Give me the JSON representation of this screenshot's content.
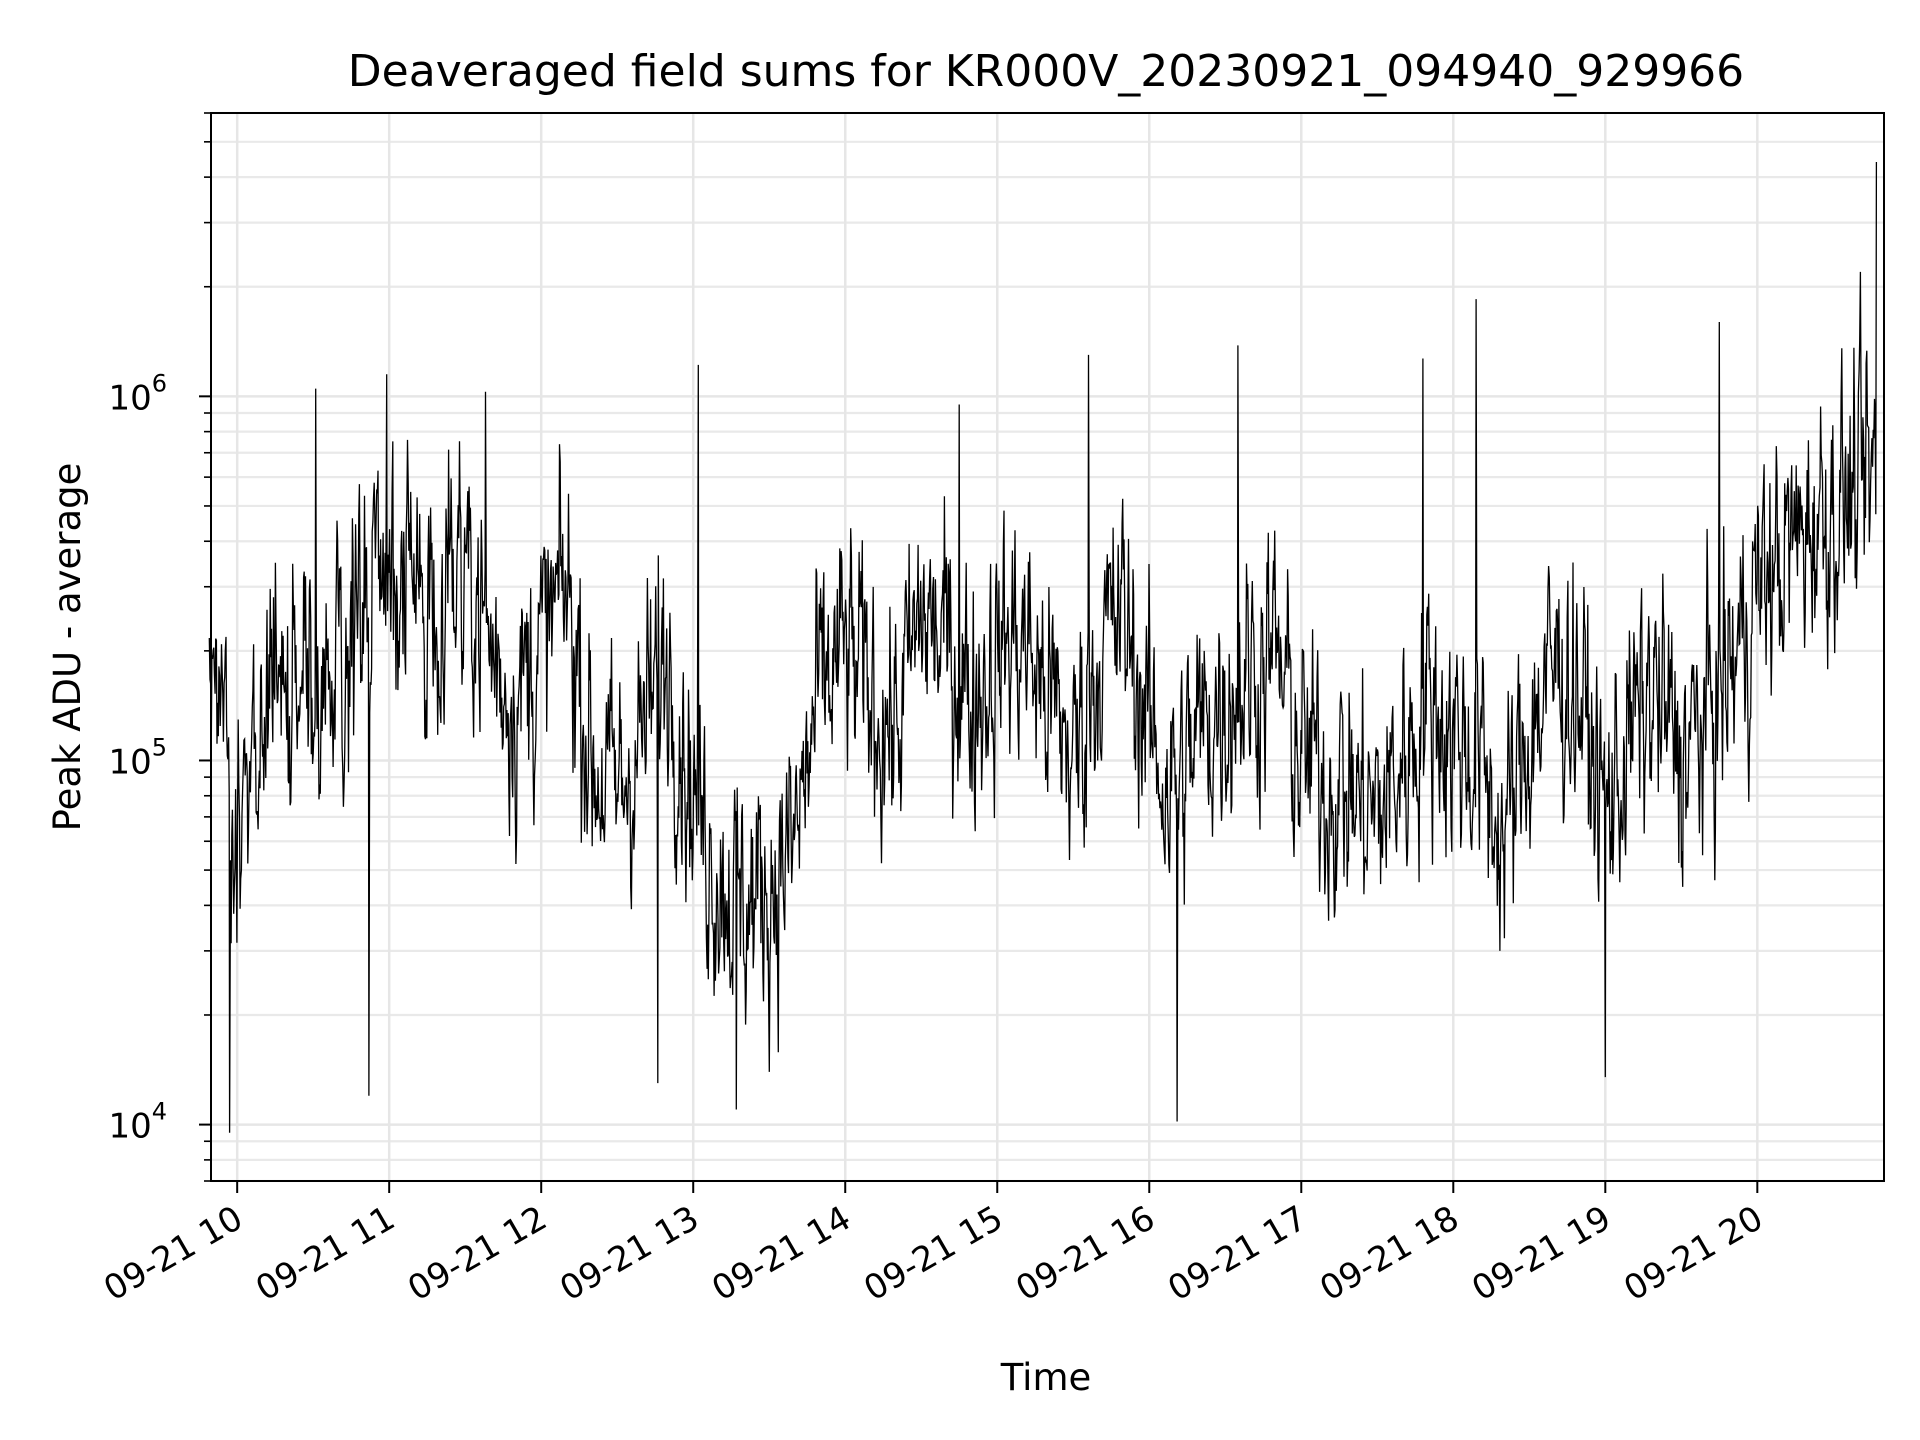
{
  "chart_data": {
    "type": "line",
    "title": "Deaveraged field sums for KR000V_20230921_094940_929966",
    "xlabel": "Time",
    "ylabel": "Peak ADU - average",
    "yscale": "log",
    "ylim": [
      7000,
      6000000
    ],
    "xlim": [
      "2023-09-21 09:49:40",
      "2023-09-21 20:50:00"
    ],
    "x_ticks": [
      {
        "value": "2023-09-21 10:00",
        "label": "09-21 10"
      },
      {
        "value": "2023-09-21 11:00",
        "label": "09-21 11"
      },
      {
        "value": "2023-09-21 12:00",
        "label": "09-21 12"
      },
      {
        "value": "2023-09-21 13:00",
        "label": "09-21 13"
      },
      {
        "value": "2023-09-21 14:00",
        "label": "09-21 14"
      },
      {
        "value": "2023-09-21 15:00",
        "label": "09-21 15"
      },
      {
        "value": "2023-09-21 16:00",
        "label": "09-21 16"
      },
      {
        "value": "2023-09-21 17:00",
        "label": "09-21 17"
      },
      {
        "value": "2023-09-21 18:00",
        "label": "09-21 18"
      },
      {
        "value": "2023-09-21 19:00",
        "label": "09-21 19"
      },
      {
        "value": "2023-09-21 20:00",
        "label": "09-21 20"
      }
    ],
    "y_ticks": [
      {
        "value": 10000,
        "base": "10",
        "exp": "4"
      },
      {
        "value": 100000,
        "base": "10",
        "exp": "5"
      },
      {
        "value": 1000000,
        "base": "10",
        "exp": "6"
      }
    ],
    "grid": true,
    "series_color": "#000000",
    "series": [
      {
        "x": [
          "2023-09-21 09:50",
          "2023-09-21 09:55",
          "2023-09-21 10:00",
          "2023-09-21 10:10",
          "2023-09-21 10:15",
          "2023-09-21 10:25",
          "2023-09-21 10:30",
          "2023-09-21 10:40",
          "2023-09-21 10:50",
          "2023-09-21 10:55",
          "2023-09-21 11:00",
          "2023-09-21 11:10",
          "2023-09-21 11:20",
          "2023-09-21 11:30",
          "2023-09-21 11:40",
          "2023-09-21 11:50",
          "2023-09-21 12:00",
          "2023-09-21 12:10",
          "2023-09-21 12:20",
          "2023-09-21 12:30",
          "2023-09-21 12:40",
          "2023-09-21 12:50",
          "2023-09-21 13:00",
          "2023-09-21 13:10",
          "2023-09-21 13:20",
          "2023-09-21 13:30",
          "2023-09-21 13:40",
          "2023-09-21 13:50",
          "2023-09-21 14:00",
          "2023-09-21 14:10",
          "2023-09-21 14:20",
          "2023-09-21 14:30",
          "2023-09-21 14:40",
          "2023-09-21 14:50",
          "2023-09-21 15:00",
          "2023-09-21 15:10",
          "2023-09-21 15:20",
          "2023-09-21 15:30",
          "2023-09-21 15:40",
          "2023-09-21 15:50",
          "2023-09-21 16:00",
          "2023-09-21 16:10",
          "2023-09-21 16:20",
          "2023-09-21 16:30",
          "2023-09-21 16:40",
          "2023-09-21 16:50",
          "2023-09-21 17:00",
          "2023-09-21 17:10",
          "2023-09-21 17:20",
          "2023-09-21 17:30",
          "2023-09-21 17:40",
          "2023-09-21 17:50",
          "2023-09-21 18:00",
          "2023-09-21 18:10",
          "2023-09-21 18:20",
          "2023-09-21 18:30",
          "2023-09-21 18:40",
          "2023-09-21 18:50",
          "2023-09-21 19:00",
          "2023-09-21 19:10",
          "2023-09-21 19:20",
          "2023-09-21 19:30",
          "2023-09-21 19:40",
          "2023-09-21 19:50",
          "2023-09-21 20:00",
          "2023-09-21 20:10",
          "2023-09-21 20:20",
          "2023-09-21 20:30",
          "2023-09-21 20:40",
          "2023-09-21 20:47"
        ],
        "y": [
          200000,
          150000,
          60000,
          90000,
          200000,
          150000,
          120000,
          180000,
          250000,
          300000,
          350000,
          260000,
          300000,
          400000,
          200000,
          150000,
          200000,
          300000,
          100000,
          80000,
          120000,
          200000,
          80000,
          50000,
          40000,
          45000,
          60000,
          150000,
          200000,
          150000,
          120000,
          250000,
          200000,
          150000,
          200000,
          220000,
          150000,
          100000,
          200000,
          250000,
          120000,
          80000,
          120000,
          150000,
          180000,
          200000,
          100000,
          90000,
          80000,
          70000,
          100000,
          150000,
          120000,
          100000,
          60000,
          120000,
          180000,
          150000,
          70000,
          120000,
          150000,
          100000,
          130000,
          180000,
          300000,
          350000,
          450000,
          500000,
          550000,
          600000
        ],
        "peaks": [
          {
            "x": "2023-09-21 09:57",
            "y": 9500
          },
          {
            "x": "2023-09-21 10:31",
            "y": 1050000
          },
          {
            "x": "2023-09-21 10:52",
            "y": 12000
          },
          {
            "x": "2023-09-21 10:59",
            "y": 1150000
          },
          {
            "x": "2023-09-21 11:38",
            "y": 1030000
          },
          {
            "x": "2023-09-21 12:46",
            "y": 13000
          },
          {
            "x": "2023-09-21 13:02",
            "y": 1220000
          },
          {
            "x": "2023-09-21 13:17",
            "y": 11000
          },
          {
            "x": "2023-09-21 14:45",
            "y": 950000
          },
          {
            "x": "2023-09-21 15:36",
            "y": 1300000
          },
          {
            "x": "2023-09-21 16:11",
            "y": 10200
          },
          {
            "x": "2023-09-21 16:35",
            "y": 1380000
          },
          {
            "x": "2023-09-21 17:48",
            "y": 1270000
          },
          {
            "x": "2023-09-21 18:09",
            "y": 1850000
          },
          {
            "x": "2023-09-21 19:00",
            "y": 13500
          },
          {
            "x": "2023-09-21 19:45",
            "y": 1600000
          },
          {
            "x": "2023-09-21 20:47",
            "y": 4400000
          }
        ]
      }
    ]
  }
}
